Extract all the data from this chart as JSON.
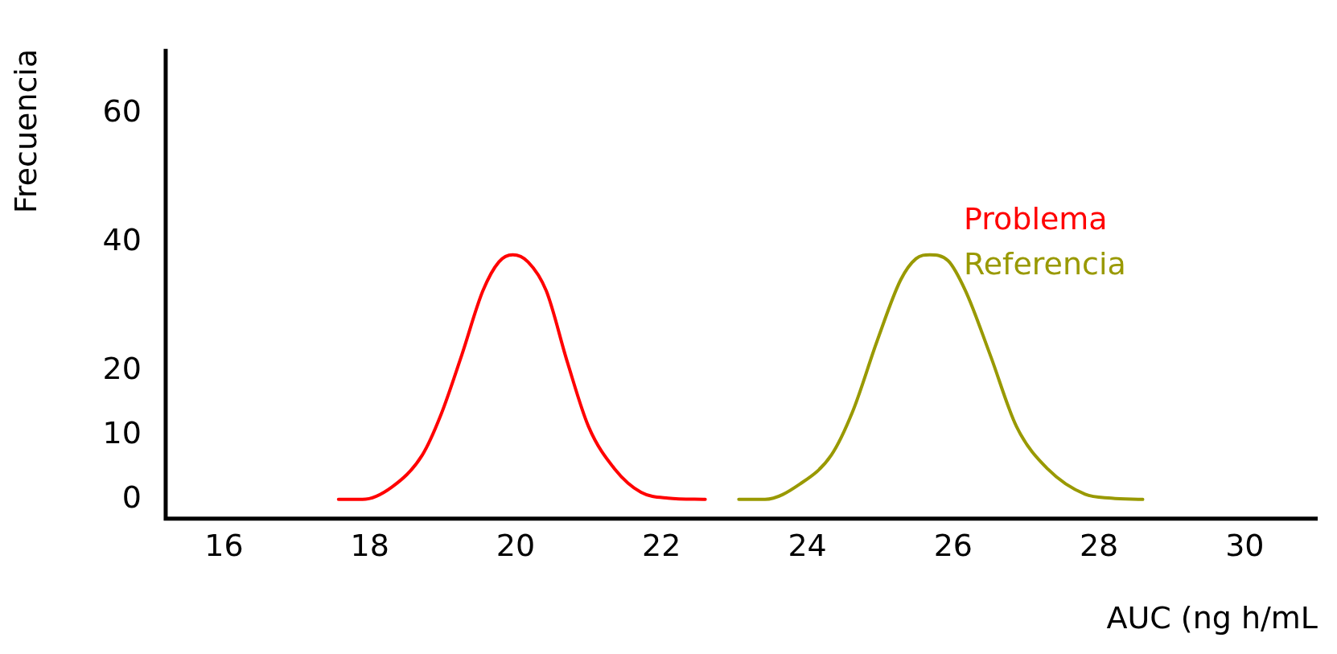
{
  "chart_data": {
    "type": "line",
    "xlabel": "AUC (ng h/mL",
    "ylabel": "Frecuencia",
    "xlim": [
      15.2,
      31
    ],
    "xticks": [
      16,
      18,
      20,
      22,
      24,
      26,
      28,
      30
    ],
    "ylim": [
      -3,
      70
    ],
    "yticks": [
      0,
      10,
      20,
      40,
      60
    ],
    "grid": false,
    "legend": "top right",
    "marker": "none",
    "line_style": "solid",
    "series": [
      {
        "name": "Problema",
        "color": "#ff0000",
        "x": [
          17.57,
          17.9,
          18.3,
          18.72,
          18.97,
          19.26,
          19.55,
          19.77,
          19.96,
          20.17,
          20.42,
          20.71,
          21.0,
          21.36,
          21.72,
          22.09,
          22.6
        ],
        "values": [
          0,
          0,
          1.9,
          6.9,
          13,
          22.4,
          32.4,
          36.9,
          38,
          36.9,
          32.4,
          21.3,
          11.3,
          4.7,
          1.1,
          0.2,
          0
        ]
      },
      {
        "name": "Referencia",
        "color": "#999900",
        "x": [
          23.06,
          23.42,
          23.9,
          24.33,
          24.62,
          24.96,
          25.28,
          25.49,
          25.68,
          25.93,
          26.17,
          26.51,
          26.87,
          27.3,
          27.81,
          28.17,
          28.6
        ],
        "values": [
          0,
          0,
          2.4,
          6.9,
          13.6,
          24.7,
          34.1,
          37.4,
          38,
          37.1,
          32.4,
          22.4,
          11.3,
          4.7,
          0.8,
          0.2,
          0
        ]
      }
    ]
  }
}
